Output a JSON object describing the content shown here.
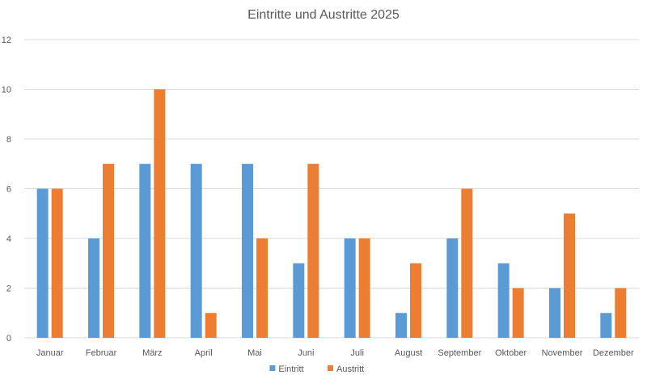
{
  "chart_data": {
    "type": "bar",
    "title": "Eintritte und Austritte 2025",
    "xlabel": "",
    "ylabel": "",
    "categories": [
      "Januar",
      "Februar",
      "März",
      "April",
      "Mai",
      "Juni",
      "Juli",
      "August",
      "September",
      "Oktober",
      "November",
      "Dezember"
    ],
    "series": [
      {
        "name": "Eintritt",
        "color": "#5b9bd5",
        "values": [
          6,
          4,
          7,
          7,
          7,
          3,
          4,
          1,
          4,
          3,
          2,
          1
        ]
      },
      {
        "name": "Austritt",
        "color": "#ed7d31",
        "values": [
          6,
          7,
          10,
          1,
          4,
          7,
          4,
          3,
          6,
          2,
          5,
          2
        ]
      }
    ],
    "ylim": [
      0,
      12
    ],
    "yticks": [
      0,
      2,
      4,
      6,
      8,
      10,
      12
    ],
    "grid": true,
    "legend_position": "bottom"
  }
}
